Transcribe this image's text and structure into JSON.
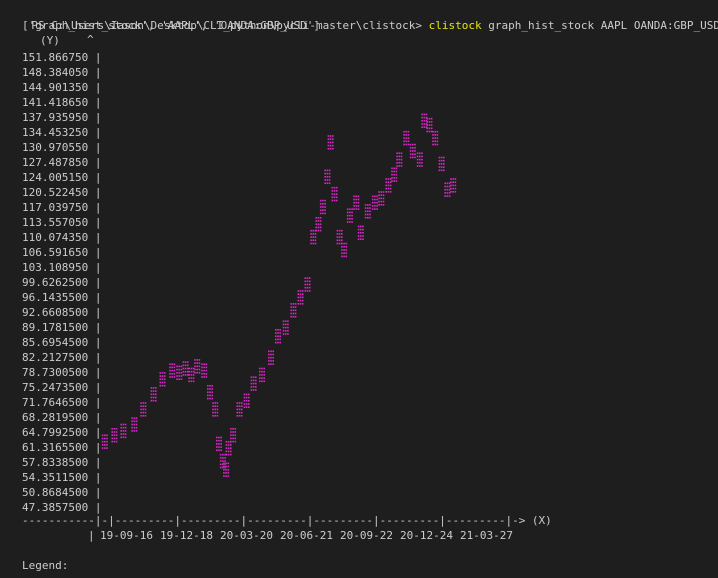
{
  "terminal": {
    "prompt": "PS C:\\Users\\Iason\\Desktop\\CLI_python\\pycli-master\\clistock>",
    "command": "clistock",
    "args": "graph_hist_stock AAPL OANDA:GBP_USD",
    "argv_echo": "['graph_hist_stock', 'AAPL', 'OANDA:GBP_USD']",
    "legend_label": "Legend:"
  },
  "colors": {
    "background": "#1e1e1e",
    "text": "#cccccc",
    "command": "#e5e510",
    "series": "#d926c7"
  },
  "chart_data": {
    "type": "scatter",
    "ylabel": "(Y)",
    "xlabel": "(X)",
    "yticks": [
      "151.866750",
      "148.384050",
      "144.901350",
      "141.418650",
      "137.935950",
      "134.453250",
      "130.970550",
      "127.487850",
      "124.005150",
      "120.522450",
      "117.039750",
      "113.557050",
      "110.074350",
      "106.591650",
      "103.108950",
      "99.6262500",
      "96.1435500",
      "92.6608500",
      "89.1781500",
      "85.6954500",
      "82.2127500",
      "78.7300500",
      "75.2473500",
      "71.7646500",
      "68.2819500",
      "64.7992500",
      "61.3165500",
      "57.8338500",
      "54.3511500",
      "50.8684500",
      "47.3857500"
    ],
    "xticks": [
      "19-09-16",
      "19-12-18",
      "20-03-20",
      "20-06-21",
      "20-09-22",
      "20-12-24",
      "21-03-27"
    ],
    "x_axis_line": "-----------|-|---------|---------|---------|---------|---------|---------|-> (X)",
    "ylim": [
      47.38575,
      151.86675
    ],
    "x_range": [
      "2019-09-16",
      "2021-03-27"
    ],
    "series": [
      {
        "x": [
          "2019-09-16",
          "2019-10-01",
          "2019-10-15",
          "2019-11-01",
          "2019-11-15",
          "2019-12-01",
          "2019-12-15",
          "2019-12-30",
          "2020-01-10",
          "2020-01-20",
          "2020-01-29",
          "2020-02-07",
          "2020-02-18",
          "2020-02-27",
          "2020-03-06",
          "2020-03-12",
          "2020-03-18",
          "2020-03-23",
          "2020-03-27",
          "2020-04-03",
          "2020-04-13",
          "2020-04-24",
          "2020-05-05",
          "2020-05-18",
          "2020-06-01",
          "2020-06-12",
          "2020-06-24",
          "2020-07-06",
          "2020-07-17",
          "2020-07-28",
          "2020-08-06",
          "2020-08-14",
          "2020-08-21",
          "2020-08-28",
          "2020-09-02",
          "2020-09-08",
          "2020-09-16",
          "2020-09-23",
          "2020-10-02",
          "2020-10-12",
          "2020-10-19",
          "2020-10-30",
          "2020-11-10",
          "2020-11-20",
          "2020-12-01",
          "2020-12-10",
          "2020-12-18",
          "2020-12-29",
          "2021-01-08",
          "2021-01-19",
          "2021-01-26",
          "2021-02-03",
          "2021-02-12",
          "2021-02-22",
          "2021-03-03",
          "2021-03-12"
        ],
        "values": [
          62.5,
          64.0,
          65.0,
          66.5,
          70.0,
          73.5,
          77.0,
          79.0,
          78.5,
          79.5,
          78.0,
          80.0,
          79.0,
          74.0,
          70.0,
          62.0,
          58.0,
          56.0,
          61.0,
          64.0,
          70.0,
          72.0,
          76.0,
          78.0,
          82.0,
          87.0,
          89.0,
          93.0,
          96.0,
          99.0,
          110.0,
          113.0,
          117.0,
          124.0,
          132.0,
          120.0,
          110.0,
          107.0,
          115.0,
          118.0,
          111.0,
          116.0,
          118.0,
          119.0,
          122.0,
          124.5,
          128.0,
          133.0,
          130.0,
          128.0,
          137.0,
          136.0,
          133.0,
          127.0,
          121.0,
          122.0
        ]
      }
    ]
  }
}
